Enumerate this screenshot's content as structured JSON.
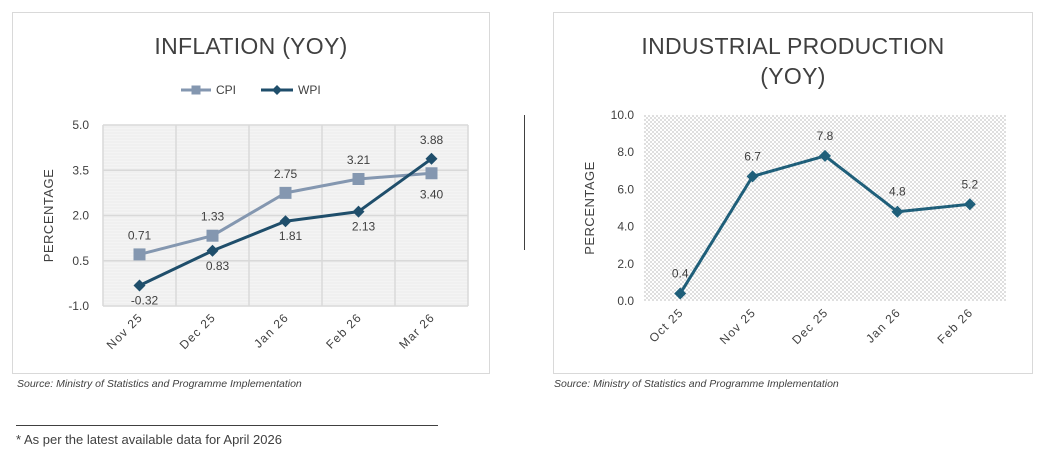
{
  "colors": {
    "cpi": "#8497b0",
    "wpi": "#1f4e6b",
    "ip": "#1f5f7a",
    "grid": "#d9d9d9",
    "text": "#404040"
  },
  "chart_data": [
    {
      "type": "line",
      "title": "INFLATION (YOY)",
      "categories": [
        "Nov 25",
        "Dec 25",
        "Jan 26",
        "Feb 26",
        "Mar 26"
      ],
      "series": [
        {
          "name": "CPI",
          "values": [
            0.71,
            1.33,
            2.75,
            3.21,
            3.4
          ],
          "marker": "square"
        },
        {
          "name": "WPI",
          "values": [
            -0.32,
            0.83,
            1.81,
            2.13,
            3.88
          ],
          "marker": "diamond"
        }
      ],
      "ylabel": "PERCENTAGE",
      "ylim": [
        -1.0,
        5.0
      ],
      "yticks": [
        "5.0",
        "3.5",
        "2.0",
        "0.5",
        "-1.0"
      ],
      "grid": true,
      "legend": "top-center",
      "source": "Source: Ministry of Statistics and Programme Implementation"
    },
    {
      "type": "line",
      "title_lines": [
        "INDUSTRIAL PRODUCTION",
        "(YOY)"
      ],
      "categories": [
        "Oct 25",
        "Nov 25",
        "Dec 25",
        "Jan 26",
        "Feb 26"
      ],
      "series": [
        {
          "name": "Industrial Production",
          "values": [
            0.4,
            6.7,
            7.8,
            4.8,
            5.2
          ],
          "marker": "diamond"
        }
      ],
      "ylabel": "PERCENTAGE",
      "ylim": [
        0.0,
        10.0
      ],
      "yticks": [
        "10.0",
        "8.0",
        "6.0",
        "4.0",
        "2.0",
        "0.0"
      ],
      "grid": false,
      "background": "dotted",
      "source": "Source: Ministry of Statistics and Programme Implementation"
    }
  ],
  "footnote": "* As per the latest available data for April 2026"
}
